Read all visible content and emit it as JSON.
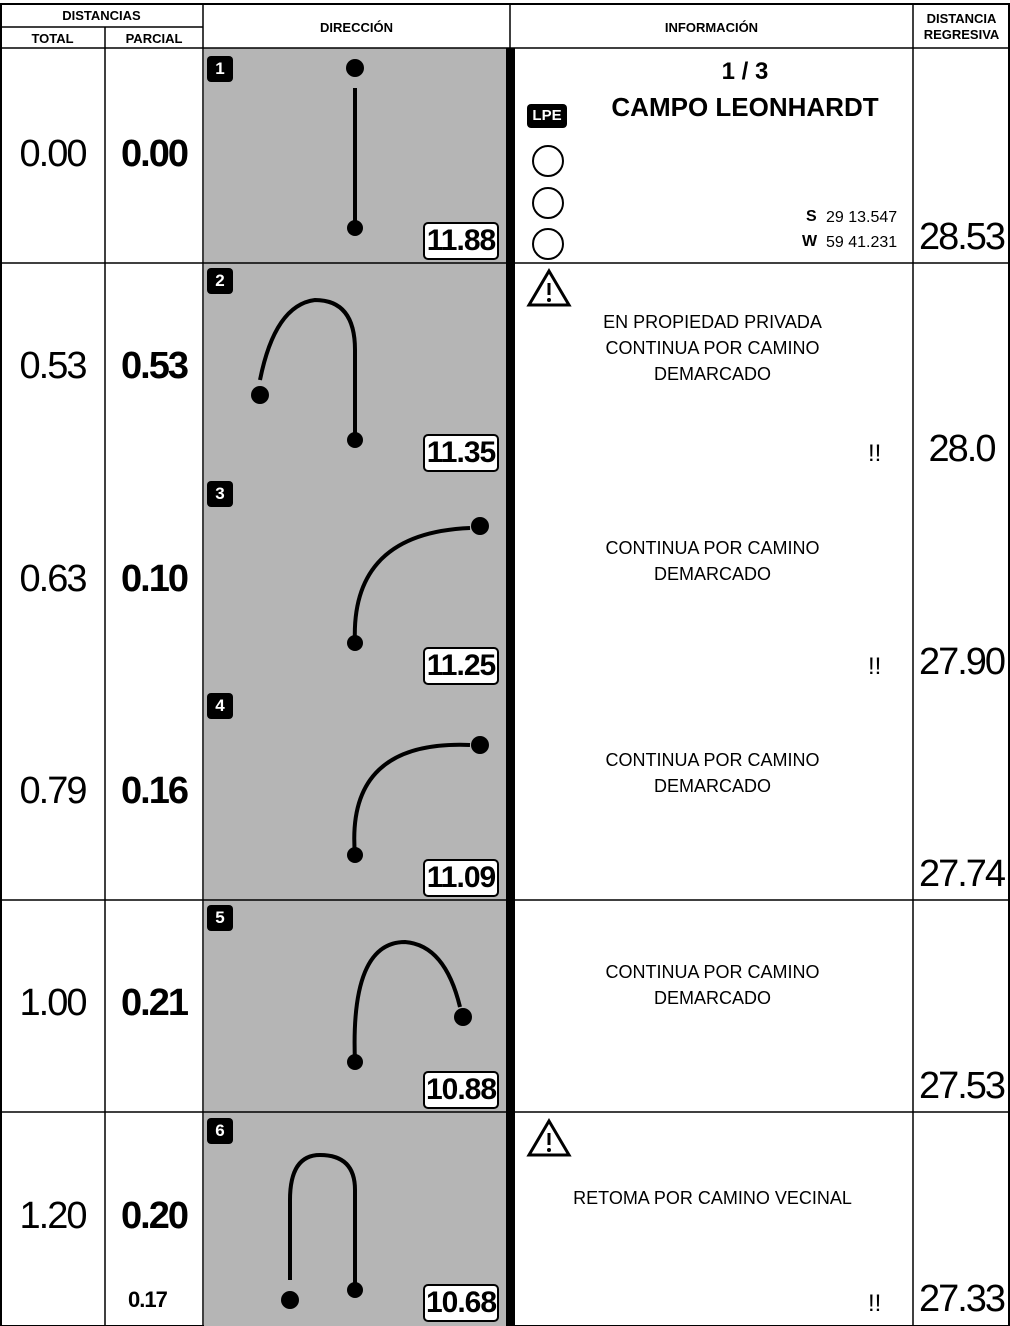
{
  "header": {
    "distancias": "DISTANCIAS",
    "total": "TOTAL",
    "parcial": "PARCIAL",
    "direccion": "DIRECCIÓN",
    "informacion": "INFORMACIÓN",
    "regresiva_1": "DISTANCIA",
    "regresiva_2": "REGRESIVA"
  },
  "rows": [
    {
      "number": "1",
      "total": "0.00",
      "parcial": "0.00",
      "partial_box": "11.88",
      "regresiva": "28.53",
      "info": {
        "page": "1 / 3",
        "title": "CAMPO LEONHARDT",
        "badge": "LPE",
        "lat_label": "S",
        "lat": "29 13.547",
        "lon_label": "W",
        "lon": "59 41.231"
      }
    },
    {
      "number": "2",
      "total": "0.53",
      "parcial": "0.53",
      "partial_box": "11.35",
      "regresiva": "28.0",
      "warning": true,
      "lines": [
        "EN PROPIEDAD PRIVADA",
        "CONTINUA POR CAMINO",
        "DEMARCADO"
      ],
      "alert": "!!"
    },
    {
      "number": "3",
      "total": "0.63",
      "parcial": "0.10",
      "partial_box": "11.25",
      "regresiva": "27.90",
      "lines": [
        "CONTINUA POR CAMINO",
        "DEMARCADO"
      ],
      "alert": "!!"
    },
    {
      "number": "4",
      "total": "0.79",
      "parcial": "0.16",
      "partial_box": "11.09",
      "regresiva": "27.74",
      "lines": [
        "CONTINUA POR CAMINO",
        "DEMARCADO"
      ]
    },
    {
      "number": "5",
      "total": "1.00",
      "parcial": "0.21",
      "partial_box": "10.88",
      "regresiva": "27.53",
      "lines": [
        "CONTINUA POR CAMINO",
        "DEMARCADO"
      ]
    },
    {
      "number": "6",
      "total": "1.20",
      "parcial": "0.20",
      "partial_box": "10.68",
      "regresiva": "27.33",
      "warning": true,
      "lines": [
        "RETOMA POR CAMINO VECINAL"
      ],
      "alert": "!!",
      "extra": "0.17"
    }
  ]
}
